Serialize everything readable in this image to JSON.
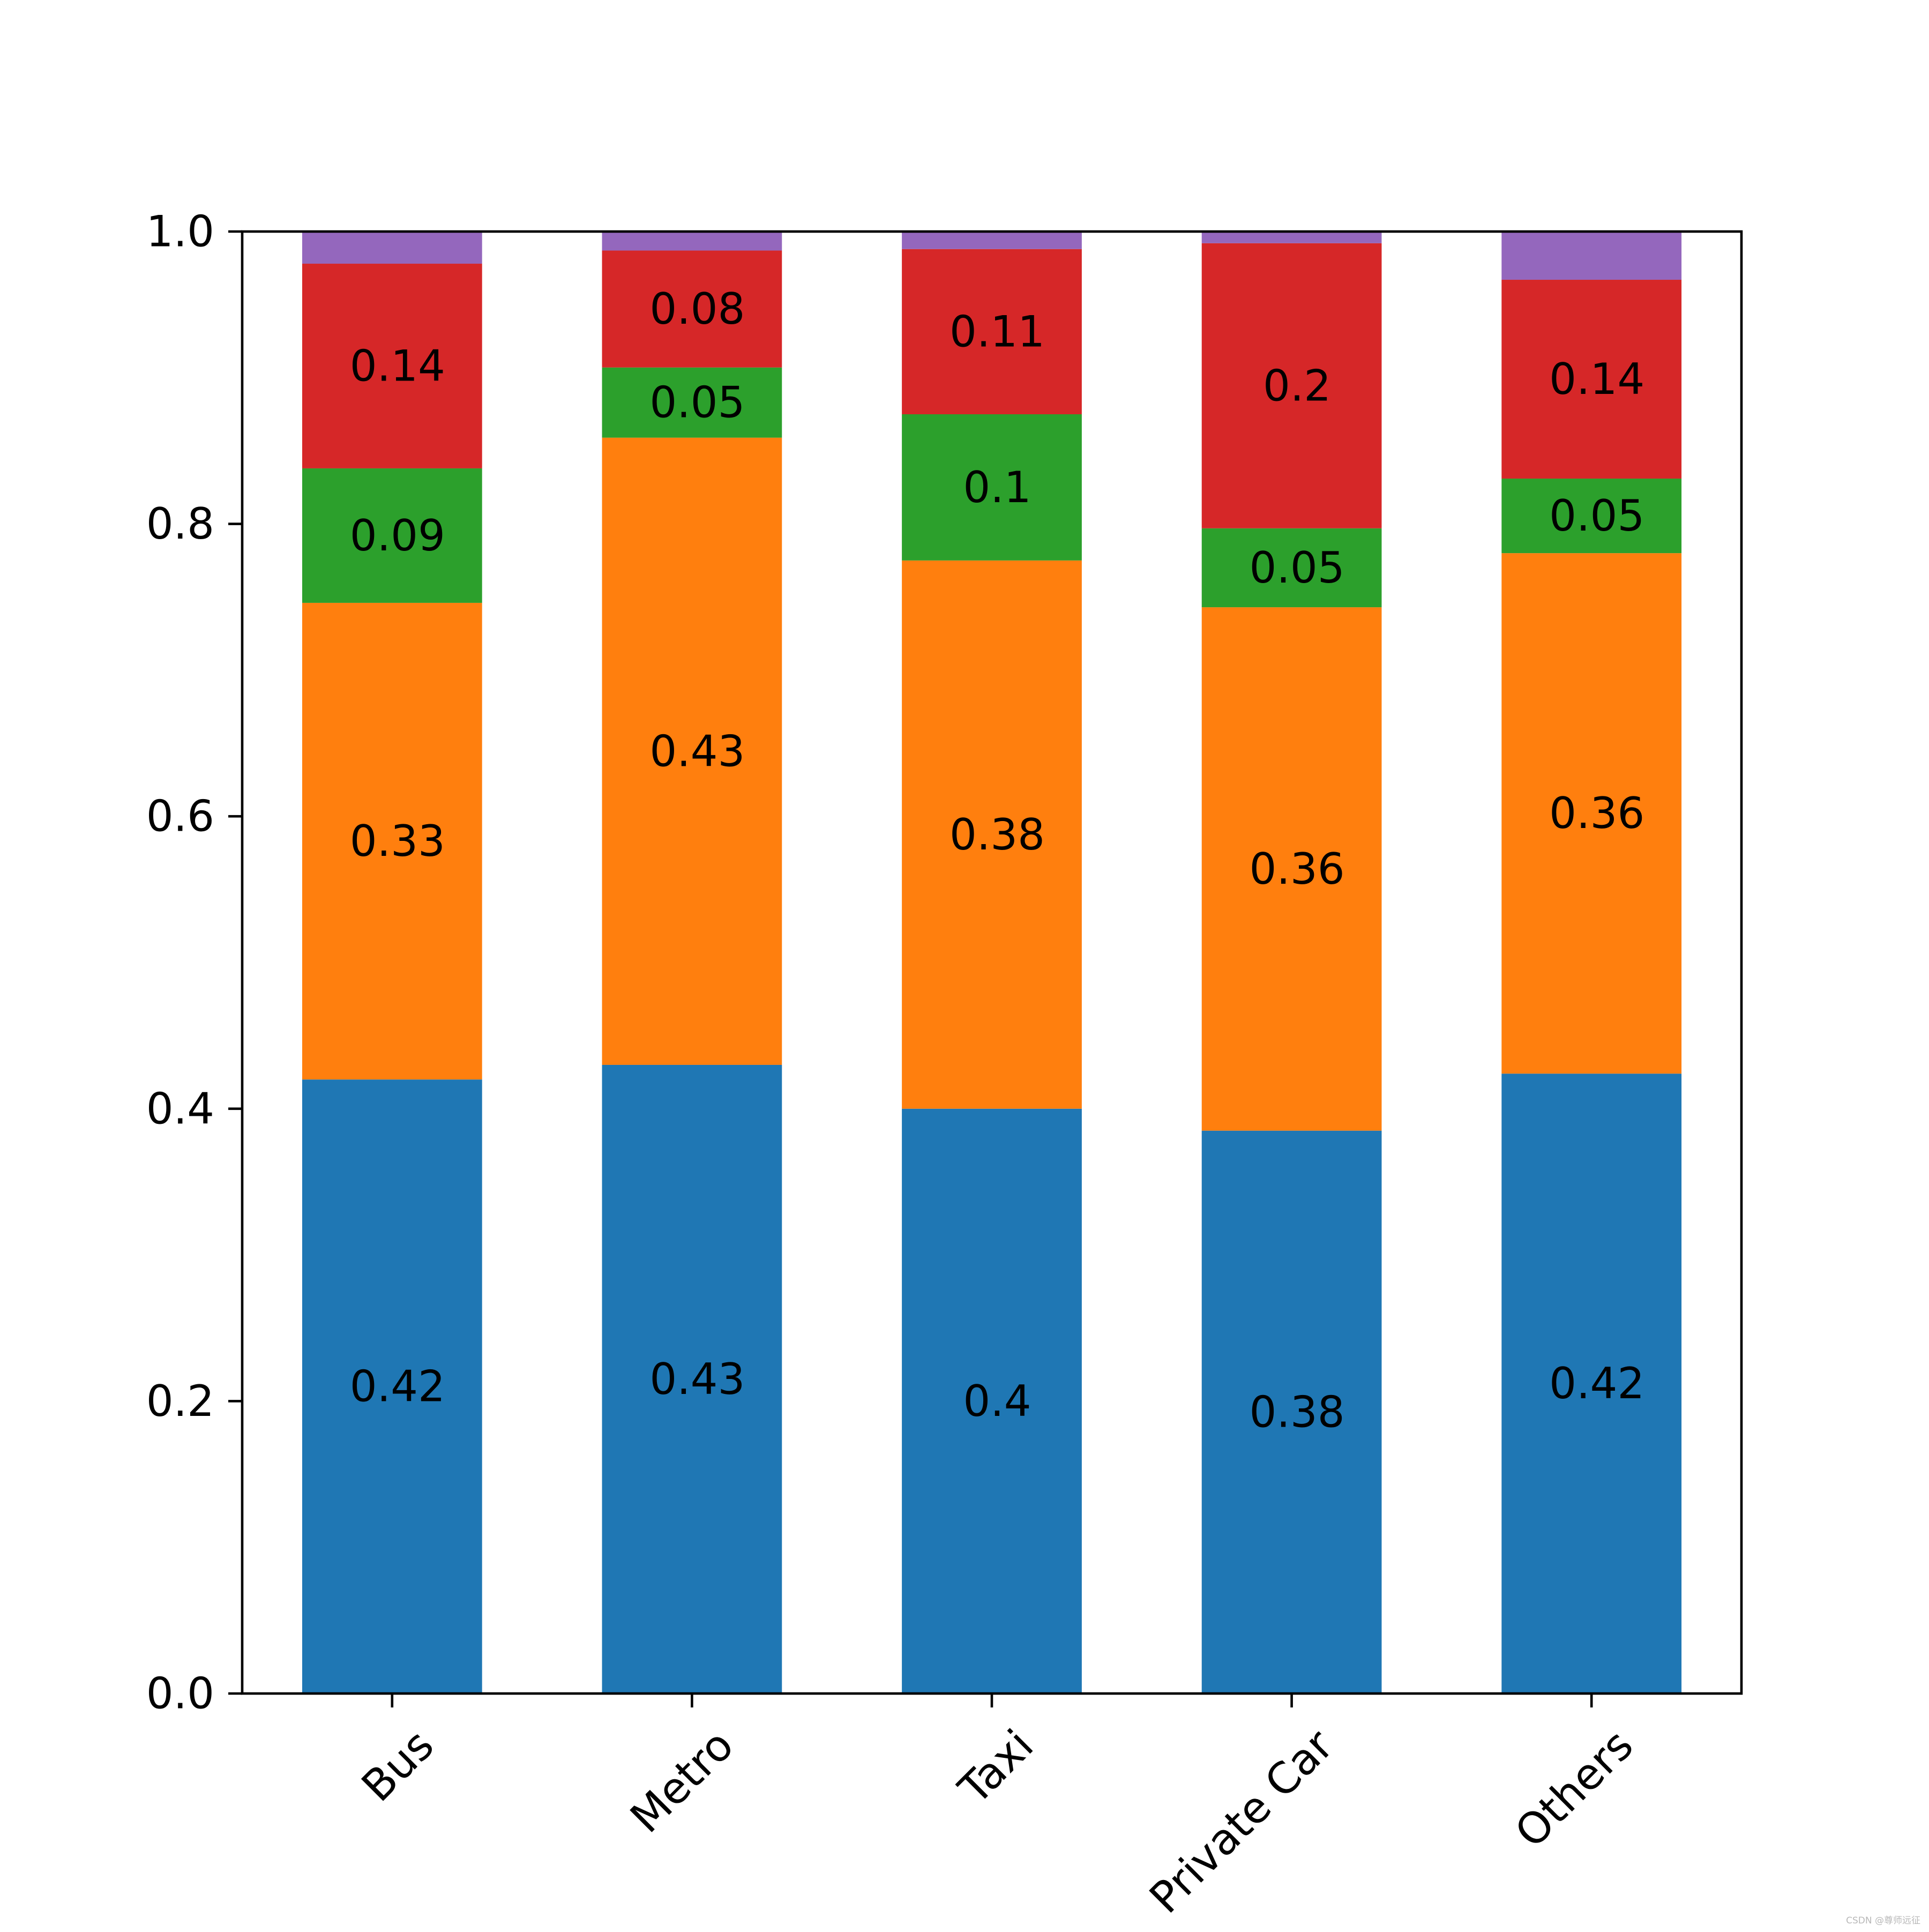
{
  "chart_data": {
    "type": "bar",
    "stacked": true,
    "categories": [
      "Bus",
      "Metro",
      "Taxi",
      "Private Car",
      "Others"
    ],
    "series": [
      {
        "values": [
          0.42,
          0.43,
          0.4,
          0.385,
          0.424
        ],
        "labels": [
          "0.42",
          "0.43",
          "0.4",
          "0.38",
          "0.42"
        ],
        "color": "#1f77b4"
      },
      {
        "values": [
          0.326,
          0.429,
          0.375,
          0.358,
          0.356
        ],
        "labels": [
          "0.33",
          "0.43",
          "0.38",
          "0.36",
          "0.36"
        ],
        "color": "#ff7f0e"
      },
      {
        "values": [
          0.092,
          0.048,
          0.1,
          0.054,
          0.051
        ],
        "labels": [
          "0.09",
          "0.05",
          "0.1",
          "0.05",
          "0.05"
        ],
        "color": "#2ca02c"
      },
      {
        "values": [
          0.14,
          0.08,
          0.113,
          0.195,
          0.136
        ],
        "labels": [
          "0.14",
          "0.08",
          "0.11",
          "0.2",
          "0.14"
        ],
        "color": "#d62728"
      },
      {
        "values": [
          0.022,
          0.015,
          0.012,
          0.008,
          0.033
        ],
        "labels": [
          "",
          "",
          "",
          "",
          ""
        ],
        "color": "#9467bd"
      }
    ],
    "ylim": [
      0,
      1.0
    ],
    "yticks": [
      0.0,
      0.2,
      0.4,
      0.6,
      0.8,
      1.0
    ],
    "ytick_labels": [
      "0.0",
      "0.2",
      "0.4",
      "0.6",
      "0.8",
      "1.0"
    ],
    "xtick_rotation": 45,
    "grid": false,
    "legend": false
  },
  "watermark": "CSDN @尊师远征"
}
